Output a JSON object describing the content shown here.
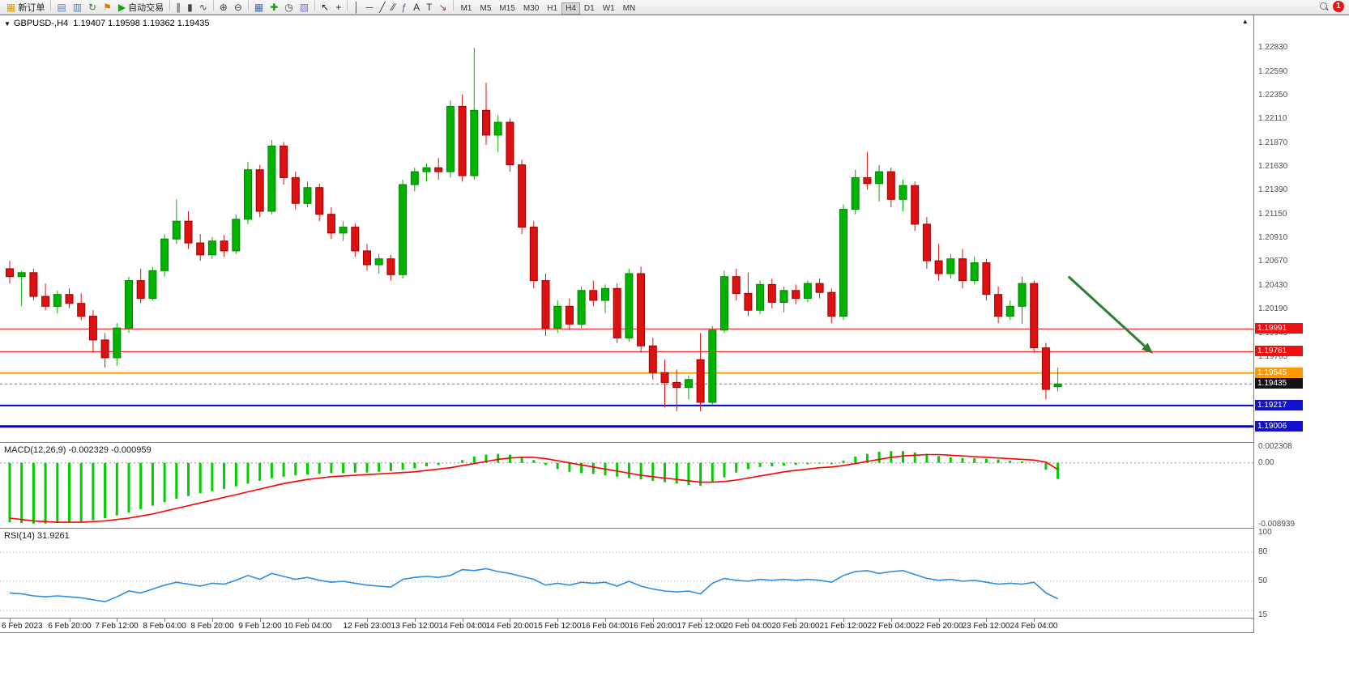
{
  "toolbar": {
    "items": [
      {
        "name": "new-order",
        "glyph": "▦",
        "glyph_color": "#d8a400",
        "label": "新订单"
      },
      {
        "kind": "sep"
      },
      {
        "name": "charts-grid",
        "glyph": "▤",
        "glyph_color": "#5b7fb4"
      },
      {
        "name": "profiles",
        "glyph": "▥",
        "glyph_color": "#5b7fb4"
      },
      {
        "name": "refresh",
        "glyph": "↻",
        "glyph_color": "#3a7d3a"
      },
      {
        "name": "alerts",
        "glyph": "⚑",
        "glyph_color": "#e07800"
      },
      {
        "name": "autotrading",
        "glyph": "▶",
        "glyph_color": "#18a018",
        "label": "自动交易"
      },
      {
        "kind": "sep"
      },
      {
        "name": "bar-chart-mode",
        "glyph": "∥",
        "glyph_color": "#444444"
      },
      {
        "name": "candle-chart-mode",
        "glyph": "▮",
        "glyph_color": "#444444"
      },
      {
        "name": "line-chart-mode",
        "glyph": "∿",
        "glyph_color": "#444444"
      },
      {
        "kind": "sep"
      },
      {
        "name": "zoom-in",
        "glyph": "⊕",
        "glyph_color": "#444444"
      },
      {
        "name": "zoom-out",
        "glyph": "⊖",
        "glyph_color": "#444444"
      },
      {
        "kind": "sep"
      },
      {
        "name": "tile-windows",
        "glyph": "▦",
        "glyph_color": "#4a6ea8"
      },
      {
        "name": "indicators",
        "glyph": "✚",
        "glyph_color": "#0aa00a"
      },
      {
        "name": "periods",
        "glyph": "◷",
        "glyph_color": "#444444"
      },
      {
        "name": "templates",
        "glyph": "▧",
        "glyph_color": "#8a6ad0"
      },
      {
        "kind": "sep"
      },
      {
        "name": "cursor",
        "glyph": "↖",
        "glyph_color": "#222222"
      },
      {
        "name": "crosshair",
        "glyph": "+",
        "glyph_color": "#222222"
      },
      {
        "kind": "sep"
      },
      {
        "name": "vertical-line-tool",
        "glyph": "│",
        "glyph_color": "#333333"
      },
      {
        "name": "horizontal-line-tool",
        "glyph": "─",
        "glyph_color": "#333333"
      },
      {
        "name": "trendline-tool",
        "glyph": "╱",
        "glyph_color": "#333333"
      },
      {
        "name": "channel-tool",
        "glyph": "⁄⁄",
        "glyph_color": "#333333"
      },
      {
        "name": "fibonacci-tool",
        "glyph": "ƒ",
        "glyph_color": "#7a4aa0"
      },
      {
        "name": "text-tool",
        "glyph": "A",
        "glyph_color": "#333333"
      },
      {
        "name": "label-tool",
        "glyph": "T",
        "glyph_color": "#333333"
      },
      {
        "name": "arrows-tool",
        "glyph": "↘",
        "glyph_color": "#b03030"
      },
      {
        "kind": "sep"
      }
    ],
    "timeframes": [
      "M1",
      "M5",
      "M15",
      "M30",
      "H1",
      "H4",
      "D1",
      "W1",
      "MN"
    ],
    "active_timeframe": "H4",
    "notification_count": "1"
  },
  "chart": {
    "collapse_glyph": "▼",
    "title_symbol": "GBPUSD-,H4",
    "title_ohlc": "1.19407 1.19598 1.19362 1.19435",
    "autoscroll_glyph": "▴"
  },
  "chart_data": {
    "type": "candlestick",
    "symbol": "GBPUSD-",
    "timeframe": "H4",
    "current_bar": {
      "open": 1.19407,
      "high": 1.19598,
      "low": 1.19362,
      "close": 1.19435
    },
    "colors": {
      "up": "#00b300",
      "up_edge": "#008500",
      "down": "#dd1111",
      "down_edge": "#a00000"
    },
    "price_axis": {
      "min": 1.1884,
      "max": 1.2316,
      "ticks": [
        1.2283,
        1.2259,
        1.2235,
        1.2211,
        1.2187,
        1.2163,
        1.2139,
        1.2115,
        1.2091,
        1.2067,
        1.2043,
        1.2019,
        1.19945,
        1.19705
      ]
    },
    "hlines": [
      {
        "price": 1.19991,
        "color": "#ff0000",
        "width": 1
      },
      {
        "price": 1.19761,
        "color": "#ff0000",
        "width": 1
      },
      {
        "price": 1.19545,
        "color": "#ffa200",
        "width": 2
      },
      {
        "price": 1.19217,
        "color": "#0000dd",
        "width": 2
      },
      {
        "price": 1.19006,
        "color": "#0000dd",
        "width": 3
      }
    ],
    "current_price": 1.19435,
    "badges": [
      {
        "price": 1.19991,
        "bg": "#ee1111"
      },
      {
        "price": 1.19761,
        "bg": "#ee1111"
      },
      {
        "price": 1.19545,
        "bg": "#ff9900"
      },
      {
        "price": 1.19435,
        "bg": "#111111"
      },
      {
        "price": 1.19217,
        "bg": "#1212cc"
      },
      {
        "price": 1.19006,
        "bg": "#1212cc"
      }
    ],
    "arrow": {
      "x1_bar": 88.9,
      "price1": 1.2052,
      "x2_bar": 96.0,
      "price2": 1.1974,
      "color": "#2e7d32"
    },
    "candles": [
      [
        1.206,
        1.2068,
        1.2045,
        1.2052
      ],
      [
        1.2052,
        1.2058,
        1.2022,
        1.2056
      ],
      [
        1.2056,
        1.206,
        1.2028,
        1.2032
      ],
      [
        1.2032,
        1.2045,
        1.2018,
        1.2022
      ],
      [
        1.2022,
        1.2038,
        1.2015,
        1.2034
      ],
      [
        1.2034,
        1.204,
        1.202,
        1.2025
      ],
      [
        1.2025,
        1.2035,
        1.2008,
        1.2012
      ],
      [
        1.2012,
        1.2018,
        1.1975,
        1.1988
      ],
      [
        1.1988,
        1.1995,
        1.196,
        1.197
      ],
      [
        1.197,
        1.2005,
        1.1962,
        1.2
      ],
      [
        1.2,
        1.2052,
        1.1995,
        1.2048
      ],
      [
        1.2048,
        1.206,
        1.2025,
        1.203
      ],
      [
        1.203,
        1.2062,
        1.2028,
        1.2058
      ],
      [
        1.2058,
        1.2095,
        1.2052,
        1.209
      ],
      [
        1.209,
        1.213,
        1.2085,
        1.2108
      ],
      [
        1.2108,
        1.2118,
        1.208,
        1.2086
      ],
      [
        1.2086,
        1.2095,
        1.2068,
        1.2074
      ],
      [
        1.2074,
        1.2092,
        1.207,
        1.2088
      ],
      [
        1.2088,
        1.2094,
        1.2072,
        1.2078
      ],
      [
        1.2078,
        1.2115,
        1.2075,
        1.211
      ],
      [
        1.211,
        1.2168,
        1.2105,
        1.216
      ],
      [
        1.216,
        1.2165,
        1.2112,
        1.2118
      ],
      [
        1.2118,
        1.219,
        1.2115,
        1.2184
      ],
      [
        1.2184,
        1.2188,
        1.2145,
        1.2152
      ],
      [
        1.2152,
        1.2158,
        1.212,
        1.2126
      ],
      [
        1.2126,
        1.2148,
        1.2122,
        1.2142
      ],
      [
        1.2142,
        1.2146,
        1.2108,
        1.2115
      ],
      [
        1.2115,
        1.2122,
        1.209,
        1.2096
      ],
      [
        1.2096,
        1.2108,
        1.2088,
        1.2102
      ],
      [
        1.2102,
        1.2106,
        1.2072,
        1.2078
      ],
      [
        1.2078,
        1.2085,
        1.2058,
        1.2064
      ],
      [
        1.2064,
        1.2075,
        1.2055,
        1.207
      ],
      [
        1.207,
        1.2074,
        1.2048,
        1.2054
      ],
      [
        1.2054,
        1.215,
        1.205,
        1.2145
      ],
      [
        1.2145,
        1.2162,
        1.2138,
        1.2158
      ],
      [
        1.2158,
        1.2166,
        1.2148,
        1.2162
      ],
      [
        1.2162,
        1.2172,
        1.215,
        1.2158
      ],
      [
        1.2158,
        1.223,
        1.2152,
        1.2224
      ],
      [
        1.2224,
        1.2236,
        1.2148,
        1.2154
      ],
      [
        1.2154,
        1.2283,
        1.215,
        1.222
      ],
      [
        1.222,
        1.2248,
        1.2185,
        1.2195
      ],
      [
        1.2195,
        1.2215,
        1.2178,
        1.2208
      ],
      [
        1.2208,
        1.2212,
        1.2158,
        1.2165
      ],
      [
        1.2165,
        1.217,
        1.2095,
        1.2102
      ],
      [
        1.2102,
        1.2108,
        1.204,
        1.2048
      ],
      [
        1.2048,
        1.2055,
        1.1992,
        1.2
      ],
      [
        1.2,
        1.2028,
        1.1995,
        1.2022
      ],
      [
        1.2022,
        1.203,
        1.1998,
        1.2004
      ],
      [
        1.2004,
        1.2042,
        1.2,
        1.2038
      ],
      [
        1.2038,
        1.2048,
        1.2022,
        1.2028
      ],
      [
        1.2028,
        1.2044,
        1.2015,
        1.204
      ],
      [
        1.204,
        1.2045,
        1.1985,
        1.199
      ],
      [
        1.199,
        1.206,
        1.1986,
        1.2055
      ],
      [
        1.2055,
        1.2062,
        1.1975,
        1.1982
      ],
      [
        1.1982,
        1.199,
        1.1948,
        1.1955
      ],
      [
        1.1955,
        1.1968,
        1.192,
        1.1945
      ],
      [
        1.1945,
        1.1958,
        1.1916,
        1.194
      ],
      [
        1.194,
        1.1952,
        1.1928,
        1.1948
      ],
      [
        1.1968,
        1.1995,
        1.1916,
        1.1925
      ],
      [
        1.1925,
        1.2002,
        1.1922,
        1.1998
      ],
      [
        1.1998,
        1.2058,
        1.1995,
        1.2052
      ],
      [
        1.2052,
        1.206,
        1.2028,
        1.2035
      ],
      [
        1.2035,
        1.2056,
        1.2012,
        1.2018
      ],
      [
        1.2018,
        1.2048,
        1.2014,
        1.2044
      ],
      [
        1.2044,
        1.205,
        1.202,
        1.2026
      ],
      [
        1.2026,
        1.2042,
        1.2016,
        1.2038
      ],
      [
        1.2038,
        1.2044,
        1.2024,
        1.203
      ],
      [
        1.203,
        1.2048,
        1.2026,
        1.2045
      ],
      [
        1.2045,
        1.205,
        1.203,
        1.2036
      ],
      [
        1.2036,
        1.204,
        1.2005,
        1.2012
      ],
      [
        1.2012,
        1.2125,
        1.2008,
        1.212
      ],
      [
        1.212,
        1.216,
        1.2115,
        1.2152
      ],
      [
        1.2152,
        1.2178,
        1.214,
        1.2146
      ],
      [
        1.2146,
        1.2165,
        1.2128,
        1.2158
      ],
      [
        1.2158,
        1.2162,
        1.2122,
        1.213
      ],
      [
        1.213,
        1.215,
        1.2118,
        1.2144
      ],
      [
        1.2144,
        1.2148,
        1.2098,
        1.2105
      ],
      [
        1.2105,
        1.2112,
        1.206,
        1.2068
      ],
      [
        1.2068,
        1.2085,
        1.2048,
        1.2055
      ],
      [
        1.2055,
        1.2075,
        1.205,
        1.207
      ],
      [
        1.207,
        1.208,
        1.204,
        1.2048
      ],
      [
        1.2048,
        1.2072,
        1.2044,
        1.2066
      ],
      [
        1.2066,
        1.207,
        1.2028,
        1.2034
      ],
      [
        1.2034,
        1.2042,
        1.2005,
        1.2012
      ],
      [
        1.2012,
        1.2028,
        1.2008,
        1.2022
      ],
      [
        1.2022,
        1.2052,
        1.2004,
        1.2045
      ],
      [
        1.2045,
        1.2048,
        1.1975,
        1.198
      ],
      [
        1.198,
        1.1985,
        1.1928,
        1.1938
      ],
      [
        1.19407,
        1.19598,
        1.19362,
        1.19435
      ]
    ],
    "time_labels": [
      [
        0,
        "6 Feb 2023"
      ],
      [
        5,
        "6 Feb 20:00"
      ],
      [
        9,
        "7 Feb 12:00"
      ],
      [
        13,
        "8 Feb 04:00"
      ],
      [
        17,
        "8 Feb 20:00"
      ],
      [
        21,
        "9 Feb 12:00"
      ],
      [
        25,
        "10 Feb 04:00"
      ],
      [
        30,
        "12 Feb 23:00"
      ],
      [
        34,
        "13 Feb 12:00"
      ],
      [
        38,
        "14 Feb 04:00"
      ],
      [
        42,
        "14 Feb 20:00"
      ],
      [
        46,
        "15 Feb 12:00"
      ],
      [
        50,
        "16 Feb 04:00"
      ],
      [
        54,
        "16 Feb 20:00"
      ],
      [
        58,
        "17 Feb 12:00"
      ],
      [
        62,
        "20 Feb 04:00"
      ],
      [
        66,
        "20 Feb 20:00"
      ],
      [
        70,
        "21 Feb 12:00"
      ],
      [
        74,
        "22 Feb 04:00"
      ],
      [
        78,
        "22 Feb 20:00"
      ],
      [
        82,
        "23 Feb 12:00"
      ],
      [
        86,
        "24 Feb 04:00"
      ]
    ],
    "macd": {
      "name": "MACD(12,26,9)",
      "values_text": "-0.002329 -0.000959",
      "hist_color": "#00cc00",
      "signal_color": "#ff0000",
      "axis": {
        "max": 0.002308,
        "min": -0.008939
      },
      "axis_ticks": [
        {
          "v": 0.002308,
          "t": "0.002308"
        },
        {
          "v": 0,
          "t": "0.00"
        },
        {
          "v": -0.008939,
          "t": "-0.008939"
        }
      ],
      "hist": [
        -0.0086,
        -0.0087,
        -0.0088,
        -0.0088,
        -0.0087,
        -0.0086,
        -0.0085,
        -0.0083,
        -0.008,
        -0.0076,
        -0.0072,
        -0.0067,
        -0.0062,
        -0.0057,
        -0.0052,
        -0.0048,
        -0.0044,
        -0.0041,
        -0.0038,
        -0.0034,
        -0.003,
        -0.0026,
        -0.0022,
        -0.002,
        -0.0018,
        -0.0017,
        -0.0016,
        -0.0015,
        -0.0015,
        -0.0014,
        -0.0014,
        -0.0013,
        -0.0012,
        -0.001,
        -0.0008,
        -0.0005,
        -0.0003,
        0.0,
        0.0004,
        0.0009,
        0.0012,
        0.0013,
        0.0012,
        0.0009,
        0.0004,
        -0.0003,
        -0.0009,
        -0.0013,
        -0.0015,
        -0.0016,
        -0.0018,
        -0.002,
        -0.0022,
        -0.0024,
        -0.0026,
        -0.0028,
        -0.003,
        -0.0032,
        -0.0033,
        -0.0028,
        -0.0021,
        -0.0014,
        -0.0009,
        -0.0006,
        -0.0005,
        -0.0004,
        -0.0003,
        -0.0002,
        -0.0001,
        -0.0002,
        0.0003,
        0.0009,
        0.0013,
        0.0016,
        0.0017,
        0.0017,
        0.0015,
        0.0013,
        0.001,
        0.0008,
        0.0007,
        0.0007,
        0.0006,
        0.0005,
        0.0003,
        0.0002,
        0.0,
        -0.001,
        -0.002329
      ],
      "signal": [
        -0.008,
        -0.0082,
        -0.0084,
        -0.0085,
        -0.0086,
        -0.0086,
        -0.0086,
        -0.0085,
        -0.0084,
        -0.0082,
        -0.008,
        -0.0077,
        -0.0074,
        -0.007,
        -0.0066,
        -0.0062,
        -0.0058,
        -0.0054,
        -0.005,
        -0.0046,
        -0.0042,
        -0.0038,
        -0.0034,
        -0.003,
        -0.0027,
        -0.0024,
        -0.0022,
        -0.002,
        -0.0019,
        -0.0018,
        -0.0017,
        -0.0016,
        -0.0015,
        -0.0014,
        -0.0013,
        -0.0011,
        -0.0009,
        -0.0007,
        -0.0004,
        -0.0001,
        0.0002,
        0.0005,
        0.0007,
        0.0008,
        0.0008,
        0.0006,
        0.0003,
        0.0,
        -0.0003,
        -0.0006,
        -0.0009,
        -0.0012,
        -0.0015,
        -0.0018,
        -0.002,
        -0.0022,
        -0.0024,
        -0.0026,
        -0.0028,
        -0.0028,
        -0.0027,
        -0.0025,
        -0.0022,
        -0.0019,
        -0.0016,
        -0.0013,
        -0.0011,
        -0.0009,
        -0.0007,
        -0.0006,
        -0.0004,
        -0.0001,
        0.0002,
        0.0005,
        0.0008,
        0.001,
        0.0011,
        0.0012,
        0.0012,
        0.0011,
        0.001,
        0.0009,
        0.0008,
        0.0007,
        0.0006,
        0.0005,
        0.0004,
        0.0001,
        -0.000959
      ]
    },
    "rsi": {
      "name": "RSI(14)",
      "value_text": "31.9261",
      "line_color": "#2e8de0",
      "range": [
        15,
        100
      ],
      "levels": [
        80,
        50,
        20
      ],
      "axis_ticks": [
        {
          "v": 100,
          "t": "100"
        },
        {
          "v": 80,
          "t": "80"
        },
        {
          "v": 50,
          "t": "50"
        },
        {
          "v": 15,
          "t": "15"
        }
      ],
      "values": [
        38,
        37,
        35,
        34,
        35,
        34,
        33,
        31,
        29,
        34,
        40,
        38,
        42,
        46,
        49,
        47,
        45,
        48,
        47,
        51,
        56,
        52,
        58,
        55,
        52,
        54,
        51,
        49,
        50,
        48,
        46,
        45,
        44,
        52,
        54,
        55,
        54,
        56,
        62,
        61,
        63,
        60,
        58,
        55,
        52,
        46,
        48,
        46,
        49,
        48,
        49,
        45,
        50,
        45,
        42,
        40,
        39,
        40,
        37,
        48,
        53,
        51,
        50,
        52,
        51,
        52,
        51,
        52,
        51,
        49,
        56,
        60,
        61,
        58,
        60,
        61,
        57,
        53,
        51,
        52,
        50,
        51,
        49,
        47,
        48,
        47,
        49,
        38,
        32
      ]
    }
  }
}
